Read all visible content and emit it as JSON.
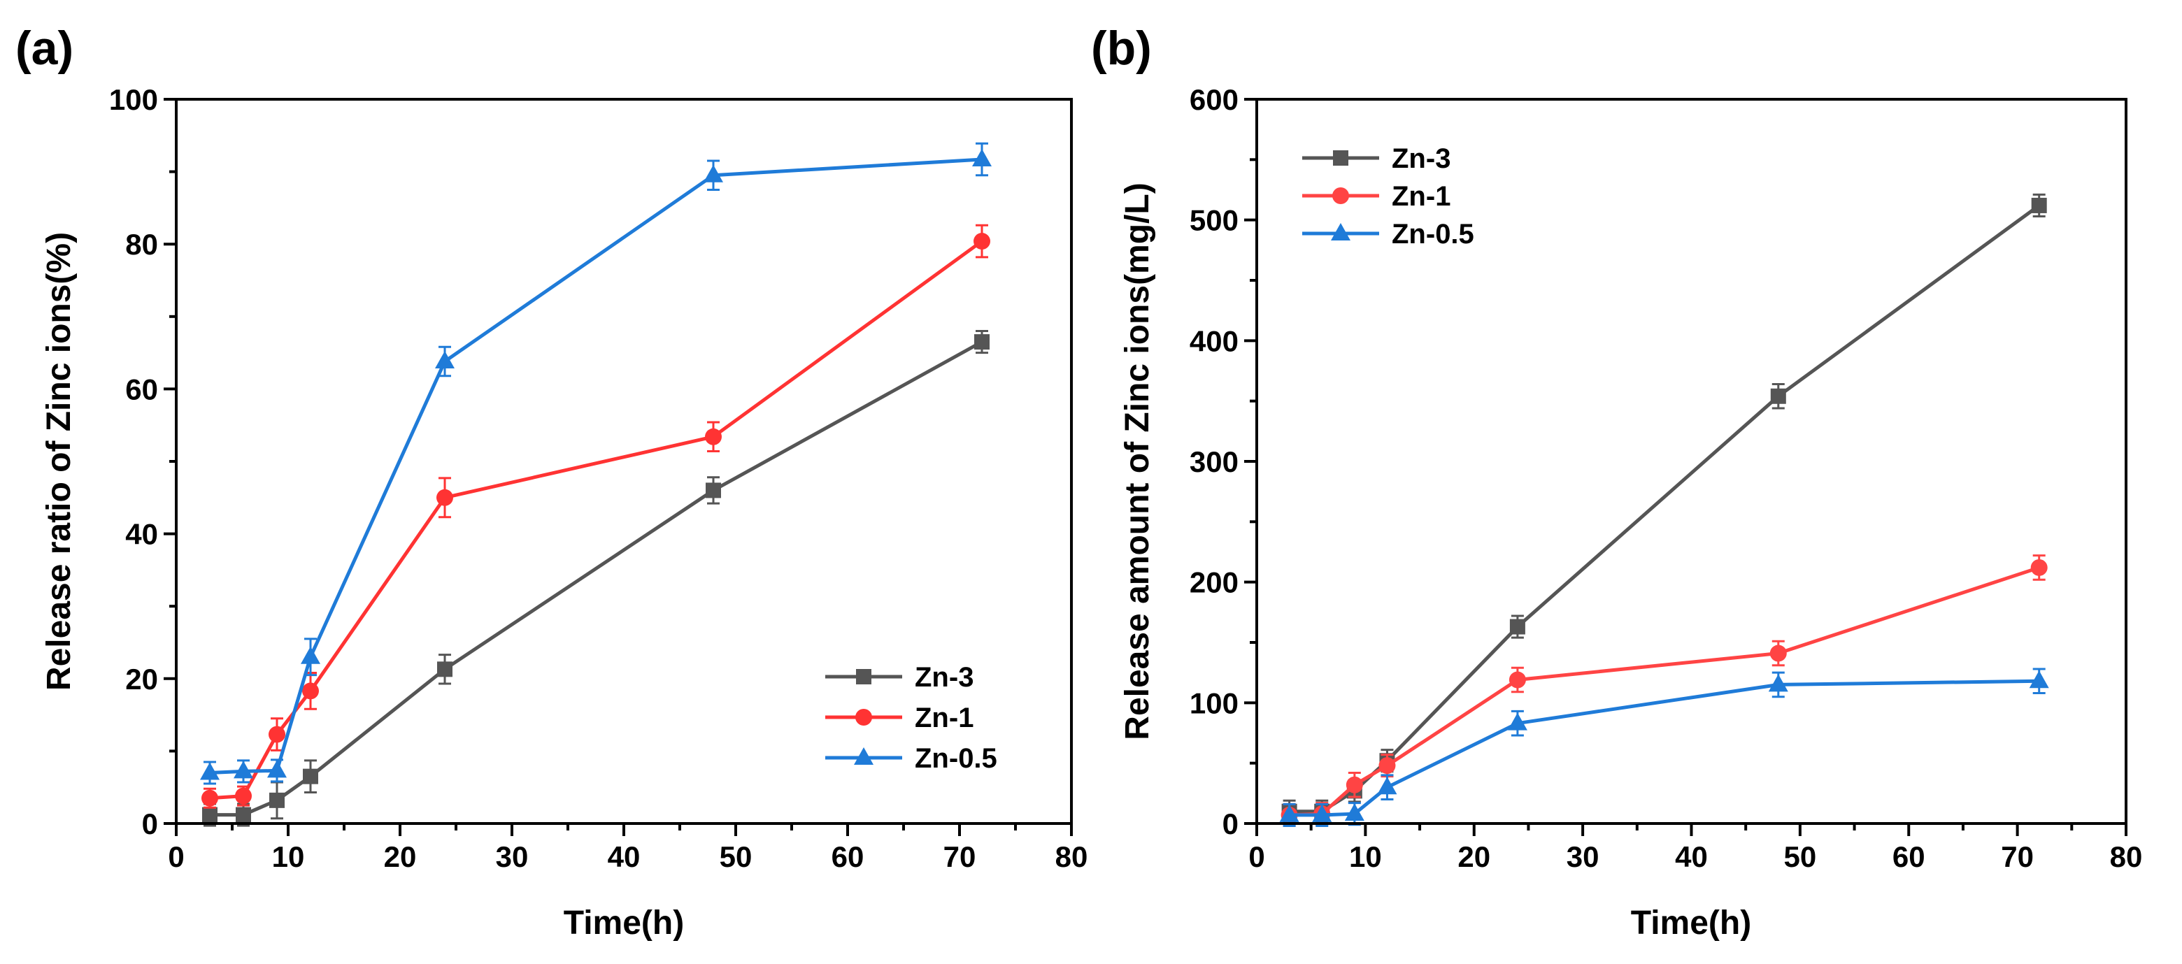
{
  "chart_data": [
    {
      "panel": "(a)",
      "type": "line",
      "xlabel": "Time(h)",
      "ylabel": "Release ratio of Zinc ions(%)",
      "xlim": [
        0,
        80
      ],
      "ylim": [
        0,
        100
      ],
      "xticks": [
        0,
        10,
        20,
        30,
        40,
        50,
        60,
        70,
        80
      ],
      "yticks": [
        0,
        20,
        40,
        60,
        80,
        100
      ],
      "grid": false,
      "legend_position": "bottom-right",
      "x": [
        3,
        6,
        9,
        12,
        24,
        48,
        72
      ],
      "series": [
        {
          "name": "Zn-3",
          "color": "#555555",
          "marker": "square",
          "values": [
            1.2,
            1.2,
            3.2,
            6.5,
            21.3,
            46.0,
            66.5
          ],
          "errors": [
            1.5,
            1.5,
            2.5,
            2.2,
            2.0,
            1.8,
            1.5
          ]
        },
        {
          "name": "Zn-1",
          "color": "#ff3333",
          "marker": "circle",
          "values": [
            3.5,
            3.8,
            12.3,
            18.3,
            45.0,
            53.4,
            80.4
          ],
          "errors": [
            1.3,
            1.3,
            2.2,
            2.5,
            2.7,
            2.0,
            2.2
          ]
        },
        {
          "name": "Zn-0.5",
          "color": "#1f7bd8",
          "marker": "triangle",
          "values": [
            7.0,
            7.2,
            7.3,
            23.0,
            63.8,
            89.5,
            91.7
          ],
          "errors": [
            1.5,
            1.5,
            1.5,
            2.5,
            2.0,
            2.0,
            2.2
          ]
        }
      ]
    },
    {
      "panel": "(b)",
      "type": "line",
      "xlabel": "Time(h)",
      "ylabel": "Release amount of Zinc ions(mg/L)",
      "xlim": [
        0,
        80
      ],
      "ylim": [
        0,
        600
      ],
      "xticks": [
        0,
        10,
        20,
        30,
        40,
        50,
        60,
        70,
        80
      ],
      "yticks": [
        0,
        100,
        200,
        300,
        400,
        500,
        600
      ],
      "grid": false,
      "legend_position": "top-left",
      "x": [
        3,
        6,
        9,
        12,
        24,
        48,
        72
      ],
      "series": [
        {
          "name": "Zn-3",
          "color": "#555555",
          "marker": "square",
          "values": [
            10,
            10,
            27,
            52,
            163,
            354,
            512
          ],
          "errors": [
            9,
            9,
            9,
            9,
            9,
            10,
            9
          ]
        },
        {
          "name": "Zn-1",
          "color": "#ff4444",
          "marker": "circle",
          "values": [
            7,
            8,
            32,
            48,
            119,
            141,
            212
          ],
          "errors": [
            9,
            9,
            10,
            9,
            10,
            10,
            10
          ]
        },
        {
          "name": "Zn-0.5",
          "color": "#1f7bd8",
          "marker": "triangle",
          "values": [
            7,
            7,
            8,
            30,
            83,
            115,
            118
          ],
          "errors": [
            9,
            9,
            9,
            10,
            10,
            10,
            10
          ]
        }
      ]
    }
  ]
}
